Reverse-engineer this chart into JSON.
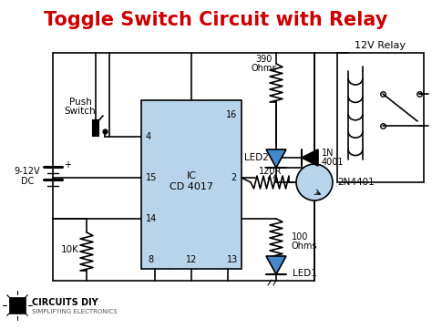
{
  "title": "Toggle Switch Circuit with Relay",
  "title_color": "#cc0000",
  "title_fontsize": 15,
  "bg_color": "#ffffff",
  "fig_width": 4.74,
  "fig_height": 3.61,
  "watermark": "CIRCUITS DIY",
  "watermark_sub": "SIMPLIFYING ELECTRONICS",
  "ic_color": "#b8d4ea",
  "trans_color": "#b8d4ea",
  "led_color": "#4488cc"
}
